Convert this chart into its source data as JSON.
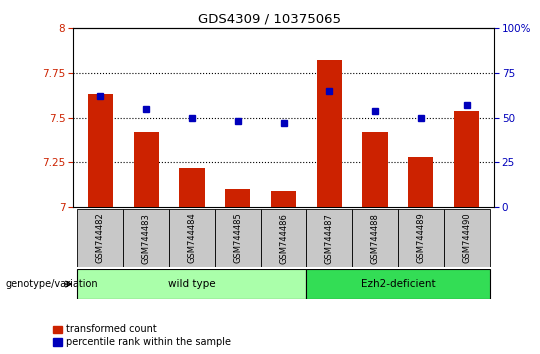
{
  "title": "GDS4309 / 10375065",
  "samples": [
    "GSM744482",
    "GSM744483",
    "GSM744484",
    "GSM744485",
    "GSM744486",
    "GSM744487",
    "GSM744488",
    "GSM744489",
    "GSM744490"
  ],
  "red_values": [
    7.63,
    7.42,
    7.22,
    7.1,
    7.09,
    7.82,
    7.42,
    7.28,
    7.54
  ],
  "blue_values": [
    62,
    55,
    50,
    48,
    47,
    65,
    54,
    50,
    57
  ],
  "ylim_left": [
    7,
    8
  ],
  "ylim_right": [
    0,
    100
  ],
  "yticks_left": [
    7,
    7.25,
    7.5,
    7.75,
    8
  ],
  "yticks_right": [
    0,
    25,
    50,
    75,
    100
  ],
  "hlines": [
    7.25,
    7.5,
    7.75
  ],
  "groups": [
    {
      "label": "wild type",
      "indices": [
        0,
        1,
        2,
        3,
        4
      ],
      "color": "#AAFFAA"
    },
    {
      "label": "Ezh2-deficient",
      "indices": [
        5,
        6,
        7,
        8
      ],
      "color": "#33DD55"
    }
  ],
  "red_color": "#CC2200",
  "blue_color": "#0000BB",
  "bar_width": 0.55,
  "legend_red": "transformed count",
  "legend_blue": "percentile rank within the sample",
  "genotype_label": "genotype/variation",
  "tick_bg_color": "#C8C8C8"
}
